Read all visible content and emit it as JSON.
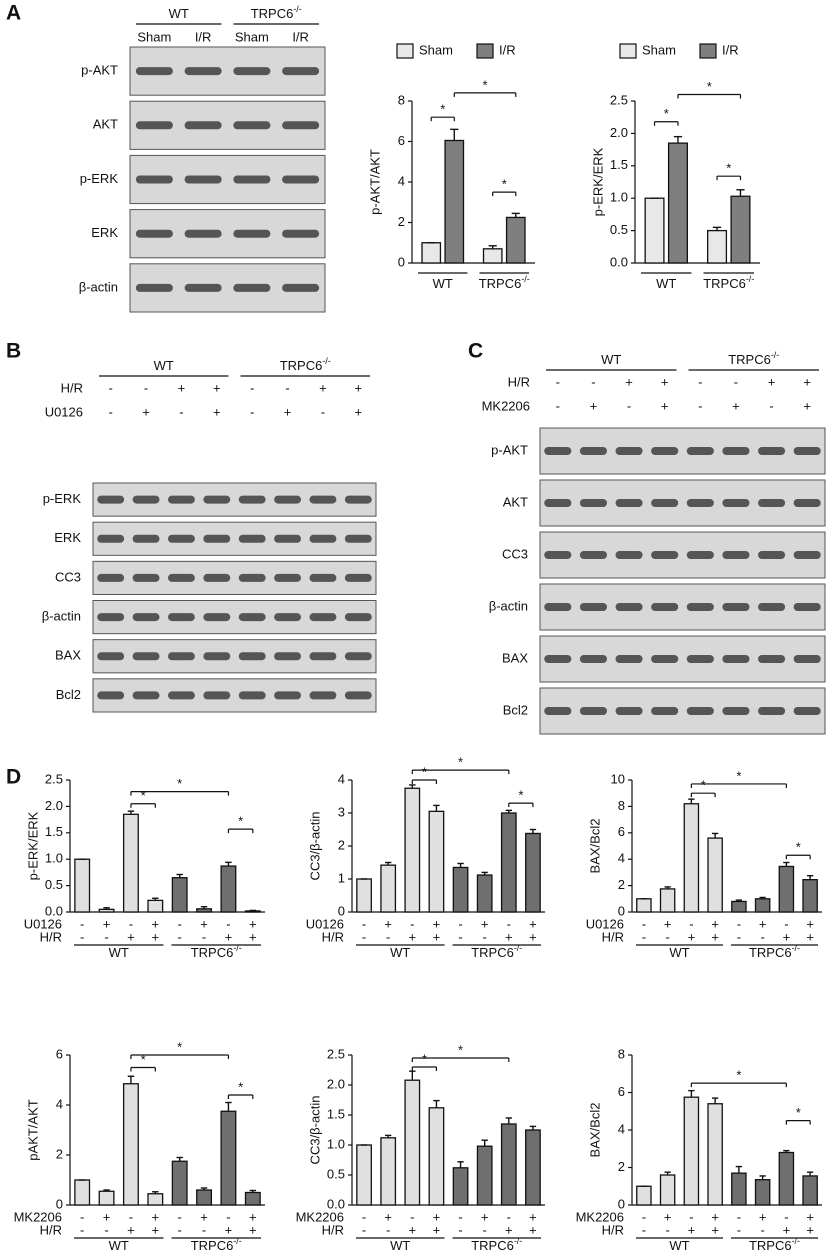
{
  "panels": [
    "A",
    "B",
    "C",
    "D"
  ],
  "blots": [
    {
      "groups": [
        {
          "text": "WT"
        },
        {
          "text": "TRPC6",
          "sup": "-/-"
        }
      ],
      "lanes": [
        "Sham",
        "I/R",
        "Sham",
        "I/R"
      ],
      "rows": [
        "p-AKT",
        "AKT",
        "p-ERK",
        "ERK",
        "β-actin"
      ]
    },
    {
      "groups": [
        {
          "text": "WT"
        },
        {
          "text": "TRPC6",
          "sup": "-/-"
        }
      ],
      "conditions": [
        {
          "name": "H/R",
          "signs": [
            "-",
            "-",
            "+",
            "+",
            "-",
            "-",
            "+",
            "+"
          ]
        },
        {
          "name": "U0126",
          "signs": [
            "-",
            "+",
            "-",
            "+",
            "-",
            "+",
            "-",
            "+"
          ]
        }
      ],
      "rows": [
        "p-ERK",
        "ERK",
        "CC3",
        "β-actin",
        "BAX",
        "Bcl2"
      ]
    },
    {
      "groups": [
        {
          "text": "WT"
        },
        {
          "text": "TRPC6",
          "sup": "-/-"
        }
      ],
      "conditions": [
        {
          "name": "H/R",
          "signs": [
            "-",
            "-",
            "+",
            "+",
            "-",
            "-",
            "+",
            "+"
          ]
        },
        {
          "name": "MK2206",
          "signs": [
            "-",
            "+",
            "-",
            "+",
            "-",
            "+",
            "-",
            "+"
          ]
        }
      ],
      "rows": [
        "p-AKT",
        "AKT",
        "CC3",
        "β-actin",
        "BAX",
        "Bcl2"
      ]
    }
  ],
  "chart_data": [
    {
      "type": "bar",
      "ylabel": "p-AKT/AKT",
      "ylim": [
        0,
        8
      ],
      "yticks": [
        0,
        2,
        4,
        6,
        8
      ],
      "categories": [
        {
          "text": "WT"
        },
        {
          "text": "TRPC6",
          "sup": "-/-"
        }
      ],
      "series": [
        {
          "name": "Sham",
          "color": "#e8e8e8",
          "values": [
            1.0,
            0.7
          ],
          "errors": [
            0,
            0.15
          ]
        },
        {
          "name": "I/R",
          "color": "#7f7f7f",
          "values": [
            6.05,
            2.25
          ],
          "errors": [
            0.55,
            0.2
          ]
        }
      ],
      "brackets": [
        {
          "label": "*",
          "from": 0,
          "to": 1,
          "y": 7.2
        },
        {
          "label": "*",
          "from": 1,
          "to": 3,
          "y": 8.4
        },
        {
          "label": "*",
          "from": 2,
          "to": 3,
          "y": 3.5
        }
      ]
    },
    {
      "type": "bar",
      "ylabel": "p-ERK/ERK",
      "ylim": [
        0,
        2.5
      ],
      "yticks": [
        {
          "value": 0,
          "label": "0.0"
        },
        0.5,
        {
          "value": 1,
          "label": "1.0"
        },
        1.5,
        {
          "value": 2,
          "label": "2.0"
        },
        2.5
      ],
      "categories": [
        {
          "text": "WT"
        },
        {
          "text": "TRPC6",
          "sup": "-/-"
        }
      ],
      "series": [
        {
          "name": "Sham",
          "color": "#e8e8e8",
          "values": [
            1.0,
            0.5
          ],
          "errors": [
            0,
            0.05
          ]
        },
        {
          "name": "I/R",
          "color": "#7f7f7f",
          "values": [
            1.85,
            1.03
          ],
          "errors": [
            0.1,
            0.1
          ]
        }
      ],
      "brackets": [
        {
          "label": "*",
          "from": 0,
          "to": 1,
          "y": 2.18
        },
        {
          "label": "*",
          "from": 1,
          "to": 3,
          "y": 2.6
        },
        {
          "label": "*",
          "from": 2,
          "to": 3,
          "y": 1.34
        }
      ]
    },
    {
      "type": "bar",
      "ylabel": "p-ERK/ERK",
      "ylim": [
        0,
        2.5
      ],
      "yticks": [
        {
          "value": 0,
          "label": "0.0"
        },
        0.5,
        {
          "value": 1,
          "label": "1.0"
        },
        1.5,
        {
          "value": 2,
          "label": "2.0"
        },
        2.5
      ],
      "values": [
        1.0,
        0.05,
        1.85,
        0.22,
        0.65,
        0.06,
        0.87,
        0.02
      ],
      "errors": [
        0,
        0.03,
        0.06,
        0.04,
        0.06,
        0.04,
        0.07,
        0.01
      ],
      "colors": [
        "#e0e0e0",
        "#e0e0e0",
        "#e0e0e0",
        "#e0e0e0",
        "#6f6f6f",
        "#6f6f6f",
        "#6f6f6f",
        "#6f6f6f"
      ],
      "conditions": [
        {
          "name": "U0126",
          "signs": [
            "-",
            "+",
            "-",
            "+",
            "-",
            "+",
            "-",
            "+"
          ]
        },
        {
          "name": "H/R",
          "signs": [
            "-",
            "-",
            "+",
            "+",
            "-",
            "-",
            "+",
            "+"
          ]
        }
      ],
      "groups": [
        {
          "text": "WT"
        },
        {
          "text": "TRPC6",
          "sup": "-/-"
        }
      ],
      "brackets": [
        {
          "label": "*",
          "from": 2,
          "to": 3,
          "y": 2.05
        },
        {
          "label": "*",
          "from": 2,
          "to": 6,
          "y": 2.28
        },
        {
          "label": "*",
          "from": 6,
          "to": 7,
          "y": 1.57
        }
      ]
    },
    {
      "type": "bar",
      "ylabel": "CC3/β-actin",
      "ylim": [
        0,
        4
      ],
      "yticks": [
        0,
        1,
        2,
        3,
        4
      ],
      "values": [
        1.0,
        1.42,
        3.75,
        3.05,
        1.35,
        1.12,
        3.0,
        2.38
      ],
      "errors": [
        0,
        0.08,
        0.1,
        0.18,
        0.12,
        0.08,
        0.08,
        0.12
      ],
      "colors": [
        "#e0e0e0",
        "#e0e0e0",
        "#e0e0e0",
        "#e0e0e0",
        "#6f6f6f",
        "#6f6f6f",
        "#6f6f6f",
        "#6f6f6f"
      ],
      "conditions": [
        {
          "name": "U0126",
          "signs": [
            "-",
            "+",
            "-",
            "+",
            "-",
            "+",
            "-",
            "+"
          ]
        },
        {
          "name": "H/R",
          "signs": [
            "-",
            "-",
            "+",
            "+",
            "-",
            "-",
            "+",
            "+"
          ]
        }
      ],
      "groups": [
        {
          "text": "WT"
        },
        {
          "text": "TRPC6",
          "sup": "-/-"
        }
      ],
      "brackets": [
        {
          "label": "*",
          "from": 2,
          "to": 3,
          "y": 4.0
        },
        {
          "label": "*",
          "from": 2,
          "to": 6,
          "y": 4.3
        },
        {
          "label": "*",
          "from": 6,
          "to": 7,
          "y": 3.3
        }
      ]
    },
    {
      "type": "bar",
      "ylabel": "BAX/Bcl2",
      "ylim": [
        0,
        10
      ],
      "yticks": [
        0,
        2,
        4,
        6,
        8,
        10
      ],
      "values": [
        1.0,
        1.75,
        8.2,
        5.6,
        0.8,
        1.0,
        3.45,
        2.45
      ],
      "errors": [
        0,
        0.15,
        0.35,
        0.35,
        0.1,
        0.1,
        0.3,
        0.3
      ],
      "colors": [
        "#e0e0e0",
        "#e0e0e0",
        "#e0e0e0",
        "#e0e0e0",
        "#6f6f6f",
        "#6f6f6f",
        "#6f6f6f",
        "#6f6f6f"
      ],
      "conditions": [
        {
          "name": "U0126",
          "signs": [
            "-",
            "+",
            "-",
            "+",
            "-",
            "+",
            "-",
            "+"
          ]
        },
        {
          "name": "H/R",
          "signs": [
            "-",
            "-",
            "+",
            "+",
            "-",
            "-",
            "+",
            "+"
          ]
        }
      ],
      "groups": [
        {
          "text": "WT"
        },
        {
          "text": "TRPC6",
          "sup": "-/-"
        }
      ],
      "brackets": [
        {
          "label": "*",
          "from": 2,
          "to": 3,
          "y": 9.0
        },
        {
          "label": "*",
          "from": 2,
          "to": 6,
          "y": 9.7
        },
        {
          "label": "*",
          "from": 6,
          "to": 7,
          "y": 4.3
        }
      ]
    },
    {
      "type": "bar",
      "ylabel": "pAKT/AKT",
      "ylim": [
        0,
        6
      ],
      "yticks": [
        0,
        2,
        4,
        6
      ],
      "values": [
        1.0,
        0.55,
        4.85,
        0.45,
        1.75,
        0.6,
        3.75,
        0.5
      ],
      "errors": [
        0,
        0.05,
        0.3,
        0.08,
        0.15,
        0.08,
        0.35,
        0.08
      ],
      "colors": [
        "#e0e0e0",
        "#e0e0e0",
        "#e0e0e0",
        "#e0e0e0",
        "#6f6f6f",
        "#6f6f6f",
        "#6f6f6f",
        "#6f6f6f"
      ],
      "conditions": [
        {
          "name": "MK2206",
          "signs": [
            "-",
            "+",
            "-",
            "+",
            "-",
            "+",
            "-",
            "+"
          ]
        },
        {
          "name": "H/R",
          "signs": [
            "-",
            "-",
            "+",
            "+",
            "-",
            "-",
            "+",
            "+"
          ]
        }
      ],
      "groups": [
        {
          "text": "WT"
        },
        {
          "text": "TRPC6",
          "sup": "-/-"
        }
      ],
      "brackets": [
        {
          "label": "*",
          "from": 2,
          "to": 3,
          "y": 5.5
        },
        {
          "label": "*",
          "from": 2,
          "to": 6,
          "y": 6.0
        },
        {
          "label": "*",
          "from": 6,
          "to": 7,
          "y": 4.4
        }
      ]
    },
    {
      "type": "bar",
      "ylabel": "CC3/β-actin",
      "ylim": [
        0,
        2.5
      ],
      "yticks": [
        {
          "value": 0,
          "label": "0.0"
        },
        0.5,
        {
          "value": 1,
          "label": "1.0"
        },
        1.5,
        {
          "value": 2,
          "label": "2.0"
        },
        2.5
      ],
      "values": [
        1.0,
        1.12,
        2.08,
        1.62,
        0.62,
        0.98,
        1.35,
        1.25
      ],
      "errors": [
        0,
        0.04,
        0.15,
        0.12,
        0.1,
        0.1,
        0.1,
        0.06
      ],
      "colors": [
        "#e0e0e0",
        "#e0e0e0",
        "#e0e0e0",
        "#e0e0e0",
        "#6f6f6f",
        "#6f6f6f",
        "#6f6f6f",
        "#6f6f6f"
      ],
      "conditions": [
        {
          "name": "MK2206",
          "signs": [
            "-",
            "+",
            "-",
            "+",
            "-",
            "+",
            "-",
            "+"
          ]
        },
        {
          "name": "H/R",
          "signs": [
            "-",
            "-",
            "+",
            "+",
            "-",
            "-",
            "+",
            "+"
          ]
        }
      ],
      "groups": [
        {
          "text": "WT"
        },
        {
          "text": "TRPC6",
          "sup": "-/-"
        }
      ],
      "brackets": [
        {
          "label": "*",
          "from": 2,
          "to": 3,
          "y": 2.3
        },
        {
          "label": "*",
          "from": 2,
          "to": 6,
          "y": 2.45
        }
      ]
    },
    {
      "type": "bar",
      "ylabel": "BAX/Bcl2",
      "ylim": [
        0,
        8
      ],
      "yticks": [
        0,
        2,
        4,
        6,
        8
      ],
      "values": [
        1.0,
        1.6,
        5.75,
        5.4,
        1.7,
        1.35,
        2.8,
        1.55
      ],
      "errors": [
        0,
        0.15,
        0.35,
        0.3,
        0.35,
        0.2,
        0.1,
        0.2
      ],
      "colors": [
        "#e0e0e0",
        "#e0e0e0",
        "#e0e0e0",
        "#e0e0e0",
        "#6f6f6f",
        "#6f6f6f",
        "#6f6f6f",
        "#6f6f6f"
      ],
      "conditions": [
        {
          "name": "MK2206",
          "signs": [
            "-",
            "+",
            "-",
            "+",
            "-",
            "+",
            "-",
            "+"
          ]
        },
        {
          "name": "H/R",
          "signs": [
            "-",
            "-",
            "+",
            "+",
            "-",
            "-",
            "+",
            "+"
          ]
        }
      ],
      "groups": [
        {
          "text": "WT"
        },
        {
          "text": "TRPC6",
          "sup": "-/-"
        }
      ],
      "brackets": [
        {
          "label": "*",
          "from": 2,
          "to": 6,
          "y": 6.5
        },
        {
          "label": "*",
          "from": 6,
          "to": 7,
          "y": 4.5
        }
      ]
    }
  ]
}
